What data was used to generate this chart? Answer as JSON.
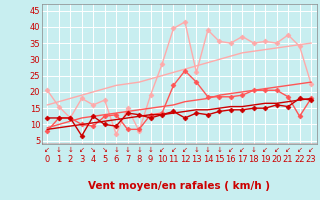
{
  "xlabel": "Vent moyen/en rafales ( km/h )",
  "xlim": [
    -0.5,
    23.5
  ],
  "ylim": [
    4,
    47
  ],
  "yticks": [
    5,
    10,
    15,
    20,
    25,
    30,
    35,
    40,
    45
  ],
  "xticks": [
    0,
    1,
    2,
    3,
    4,
    5,
    6,
    7,
    8,
    9,
    10,
    11,
    12,
    13,
    14,
    15,
    16,
    17,
    18,
    19,
    20,
    21,
    22,
    23
  ],
  "bg_color": "#c8eef0",
  "grid_color": "#ffffff",
  "lines": [
    {
      "color": "#ffaaaa",
      "lw": 1.0,
      "marker": "D",
      "markersize": 2.5,
      "y": [
        20.5,
        15.5,
        12.0,
        18.0,
        16.0,
        17.5,
        7.0,
        15.0,
        8.0,
        19.0,
        28.5,
        39.5,
        41.5,
        26.0,
        39.0,
        35.5,
        35.0,
        37.0,
        35.0,
        35.5,
        35.0,
        37.5,
        34.0,
        22.5
      ]
    },
    {
      "color": "#ffaaaa",
      "lw": 1.0,
      "marker": null,
      "y": [
        16.0,
        17.0,
        18.0,
        19.0,
        20.0,
        21.0,
        22.0,
        22.5,
        23.0,
        24.0,
        25.0,
        26.0,
        27.0,
        28.0,
        29.0,
        30.0,
        31.0,
        32.0,
        32.5,
        33.0,
        33.5,
        34.0,
        34.5,
        35.0
      ]
    },
    {
      "color": "#ff5555",
      "lw": 1.0,
      "marker": "D",
      "markersize": 2.5,
      "y": [
        8.0,
        12.0,
        12.0,
        10.0,
        9.5,
        12.5,
        13.0,
        8.5,
        8.5,
        13.0,
        13.5,
        22.0,
        26.5,
        23.0,
        18.5,
        18.5,
        18.5,
        19.0,
        20.5,
        20.5,
        20.5,
        18.5,
        12.5,
        18.0
      ]
    },
    {
      "color": "#ff5555",
      "lw": 1.0,
      "marker": null,
      "y": [
        9.0,
        10.0,
        11.0,
        12.0,
        12.5,
        13.0,
        13.5,
        14.0,
        14.5,
        15.0,
        15.5,
        16.0,
        17.0,
        17.5,
        18.0,
        19.0,
        19.5,
        20.0,
        20.5,
        21.0,
        21.5,
        22.0,
        22.5,
        23.0
      ]
    },
    {
      "color": "#cc0000",
      "lw": 1.0,
      "marker": "D",
      "markersize": 2.5,
      "y": [
        12.0,
        12.0,
        12.0,
        6.5,
        12.5,
        10.0,
        9.5,
        13.5,
        13.0,
        12.0,
        13.0,
        14.0,
        12.0,
        13.5,
        13.0,
        14.0,
        14.5,
        14.5,
        15.0,
        15.0,
        16.0,
        15.5,
        18.0,
        17.5
      ]
    },
    {
      "color": "#cc0000",
      "lw": 1.0,
      "marker": null,
      "y": [
        8.5,
        9.0,
        9.5,
        10.0,
        10.5,
        11.0,
        11.5,
        12.0,
        12.5,
        13.0,
        13.0,
        13.5,
        14.0,
        14.5,
        14.5,
        15.0,
        15.5,
        15.5,
        16.0,
        16.5,
        16.5,
        17.0,
        17.5,
        18.0
      ]
    }
  ],
  "arrow_color": "#cc0000",
  "xlabel_color": "#cc0000",
  "xlabel_fontsize": 7.5,
  "tick_fontsize": 6,
  "tick_color": "#cc0000"
}
